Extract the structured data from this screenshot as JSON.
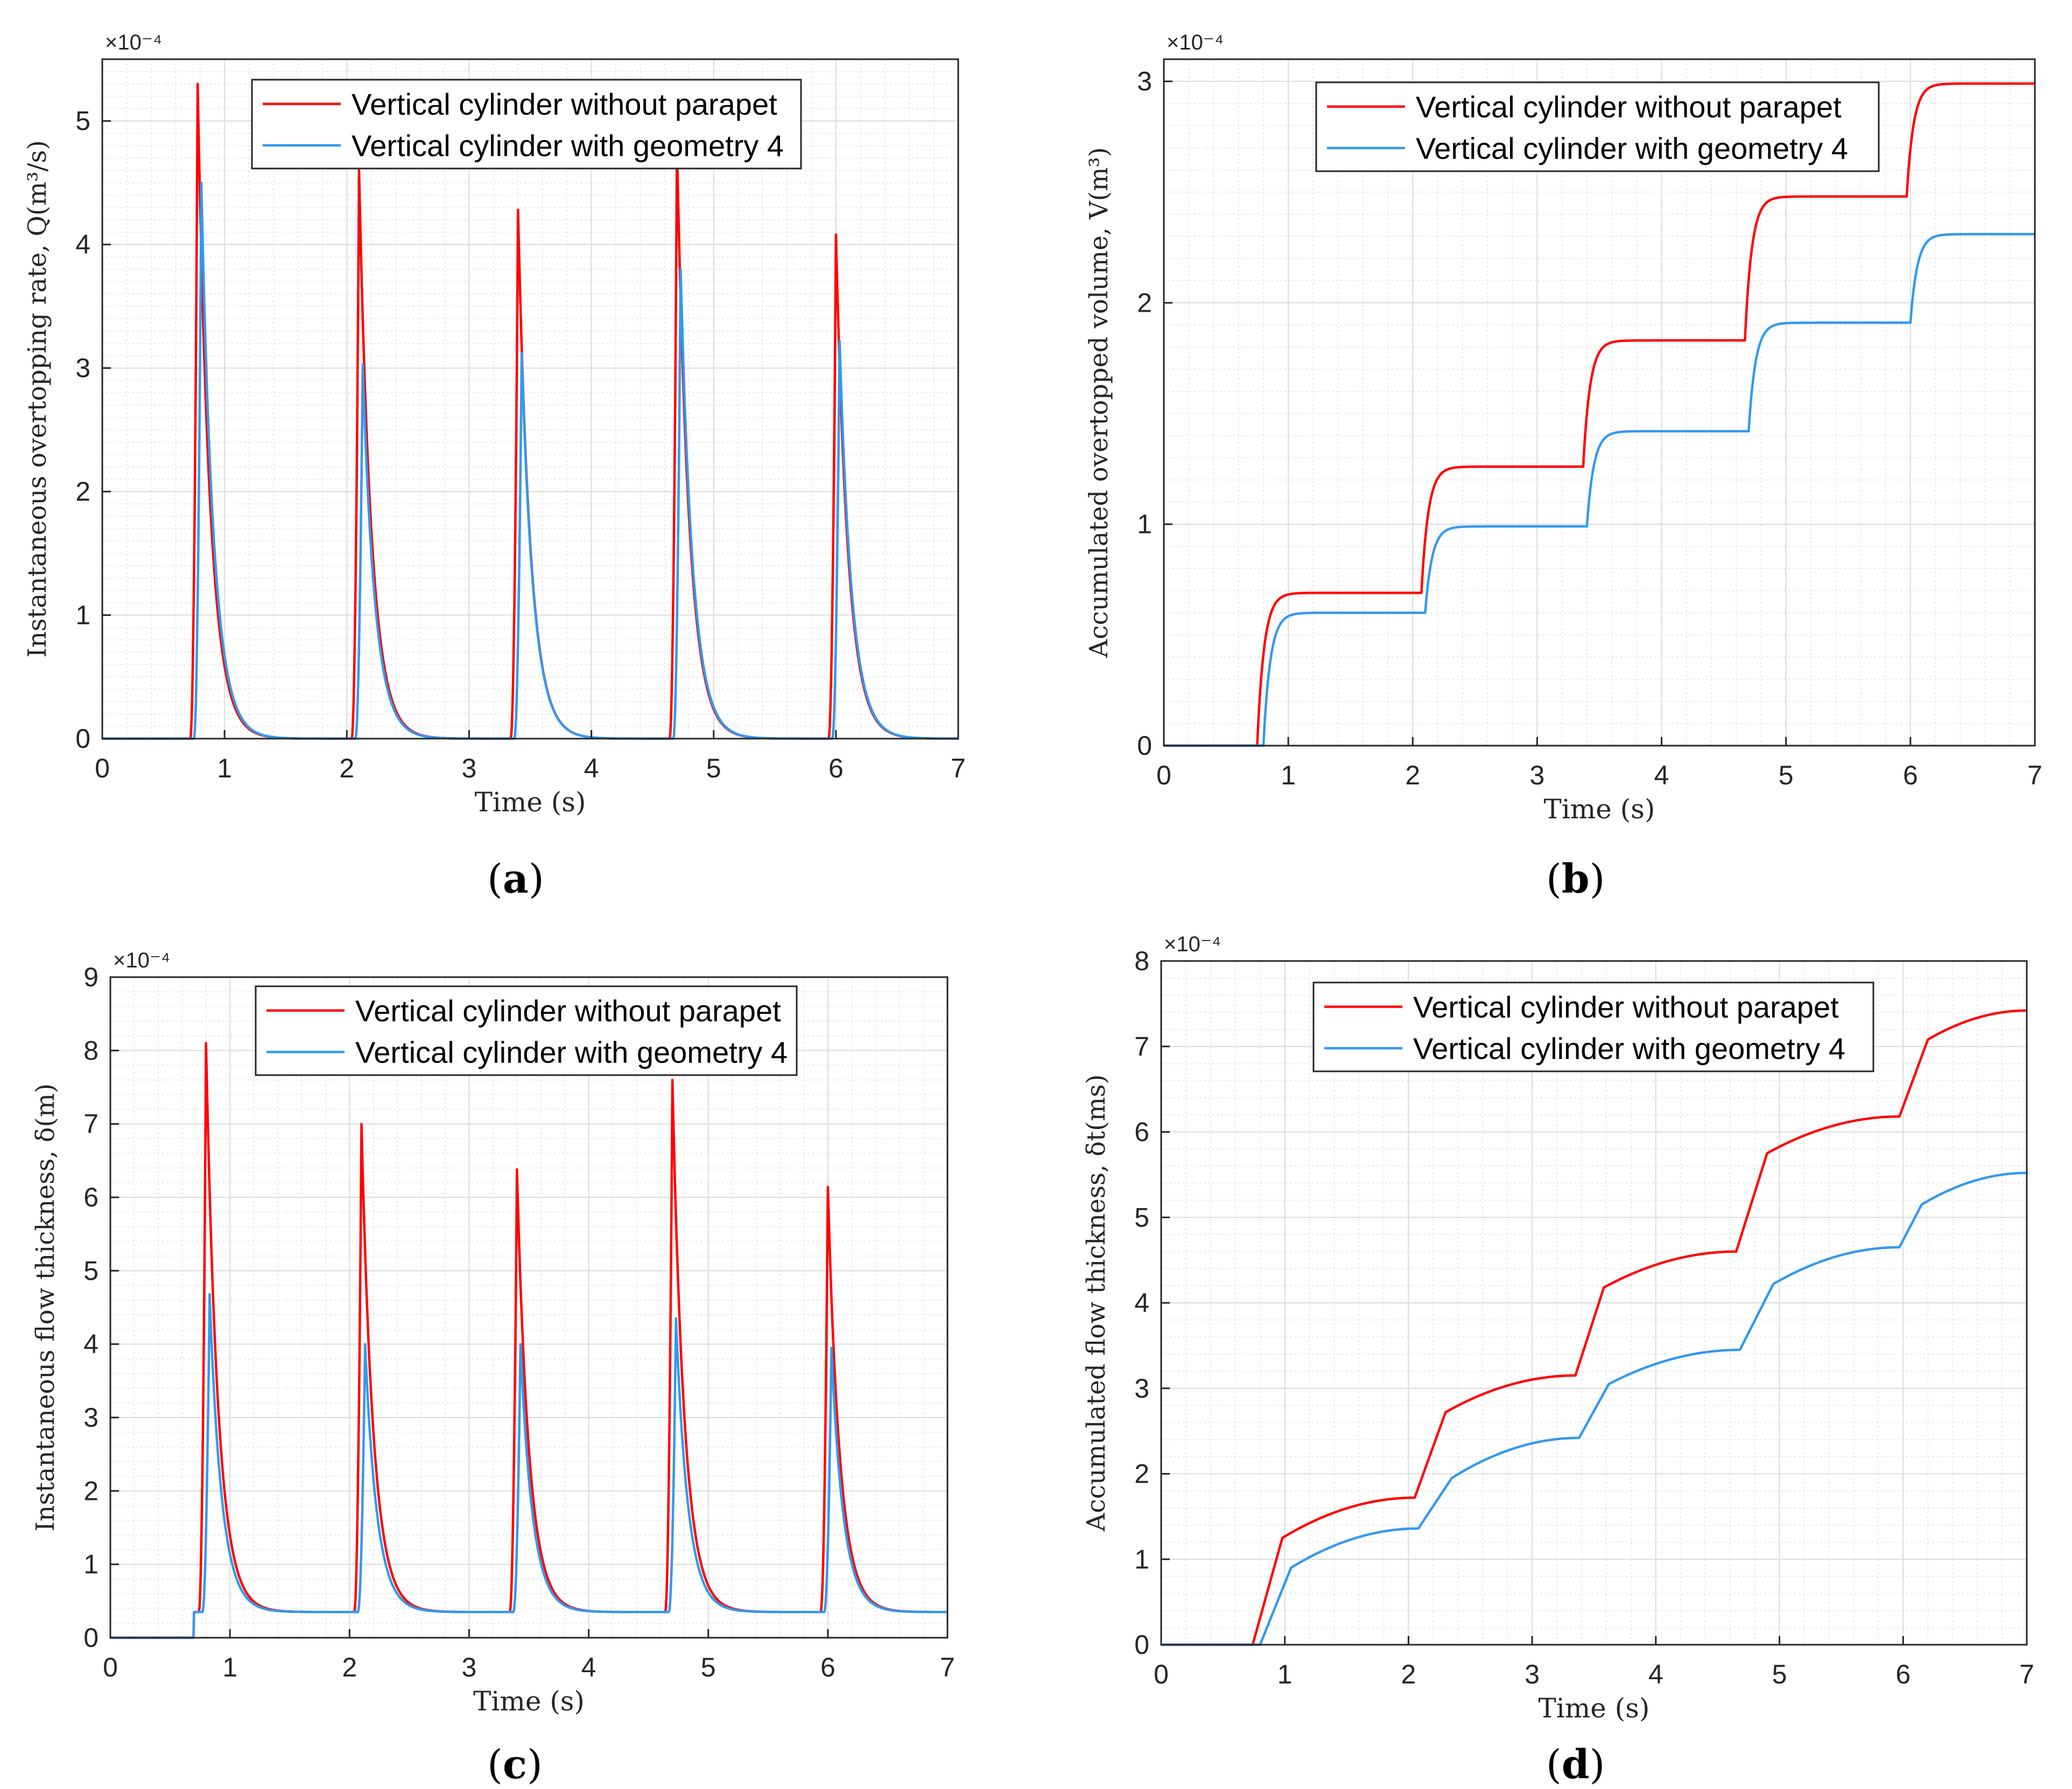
{
  "captions": [
    "a",
    "b",
    "c",
    "d"
  ],
  "colors": {
    "series1": "#ff0000",
    "series2": "#3399ee",
    "grid": "#dcdcdc",
    "axis": "#262626"
  },
  "chart_data": [
    {
      "type": "line",
      "panel": "a",
      "xlabel": "Time (s)",
      "ylabel": "Instantaneous overtopping rate, Q(m³/s)",
      "exponent": "×10⁻⁴",
      "xlim": [
        0,
        7
      ],
      "ylim": [
        0,
        5.5
      ],
      "xticks": [
        "0",
        "1",
        "2",
        "3",
        "4",
        "5",
        "6",
        "7"
      ],
      "yticks": [
        "0",
        "1",
        "2",
        "3",
        "4",
        "5"
      ],
      "grid": true,
      "legend_position": "top-center",
      "series": [
        {
          "name": "Vertical cylinder without parapet",
          "kind": "peaks",
          "base": 0.0,
          "peaks": [
            [
              0.78,
              5.3
            ],
            [
              2.1,
              4.6
            ],
            [
              3.4,
              4.28
            ],
            [
              4.7,
              4.8
            ],
            [
              6.0,
              4.08
            ]
          ]
        },
        {
          "name": "Vertical cylinder with geometry 4",
          "kind": "peaks",
          "base": 0.0,
          "peaks": [
            [
              0.81,
              4.5
            ],
            [
              2.13,
              3.03
            ],
            [
              3.43,
              3.12
            ],
            [
              4.73,
              3.8
            ],
            [
              6.03,
              3.22
            ]
          ]
        }
      ]
    },
    {
      "type": "line",
      "panel": "b",
      "xlabel": "Time (s)",
      "ylabel": "Accumulated overtopped volume, V(m³)",
      "exponent": "×10⁻⁴",
      "xlim": [
        0,
        7
      ],
      "ylim": [
        0,
        3.1
      ],
      "xticks": [
        "0",
        "1",
        "2",
        "3",
        "4",
        "5",
        "6",
        "7"
      ],
      "yticks": [
        "0",
        "1",
        "2",
        "3"
      ],
      "grid": true,
      "legend_position": "top-center",
      "series": [
        {
          "name": "Vertical cylinder without parapet",
          "kind": "steps",
          "start": 0.0,
          "steps": [
            [
              0.75,
              0.69
            ],
            [
              2.07,
              1.26
            ],
            [
              3.37,
              1.83
            ],
            [
              4.67,
              2.48
            ],
            [
              5.97,
              2.99
            ]
          ]
        },
        {
          "name": "Vertical cylinder with geometry 4",
          "kind": "steps",
          "start": 0.0,
          "steps": [
            [
              0.8,
              0.6
            ],
            [
              2.1,
              0.99
            ],
            [
              3.4,
              1.42
            ],
            [
              4.7,
              1.91
            ],
            [
              6.0,
              2.31
            ]
          ]
        }
      ]
    },
    {
      "type": "line",
      "panel": "c",
      "xlabel": "Time (s)",
      "ylabel": "Instantaneous flow thickness, δ(m)",
      "exponent": "×10⁻⁴",
      "xlim": [
        0,
        7
      ],
      "ylim": [
        0,
        9
      ],
      "xticks": [
        "0",
        "1",
        "2",
        "3",
        "4",
        "5",
        "6",
        "7"
      ],
      "yticks": [
        "0",
        "1",
        "2",
        "3",
        "4",
        "5",
        "6",
        "7",
        "8",
        "9"
      ],
      "grid": true,
      "legend_position": "top-center",
      "series": [
        {
          "name": "Vertical cylinder without parapet",
          "kind": "peaks",
          "base": 0.35,
          "peaks": [
            [
              0.8,
              8.1
            ],
            [
              2.1,
              7.0
            ],
            [
              3.4,
              6.38
            ],
            [
              4.7,
              7.6
            ],
            [
              6.0,
              6.14
            ]
          ]
        },
        {
          "name": "Vertical cylinder with geometry 4",
          "kind": "peaks",
          "base": 0.35,
          "peaks": [
            [
              0.83,
              4.68
            ],
            [
              2.13,
              4.0
            ],
            [
              3.43,
              4.0
            ],
            [
              4.73,
              4.35
            ],
            [
              6.03,
              3.95
            ]
          ]
        }
      ]
    },
    {
      "type": "line",
      "panel": "d",
      "xlabel": "Time (s)",
      "ylabel": "Accumulated flow thickness, δt(ms)",
      "exponent": "×10⁻⁴",
      "xlim": [
        0,
        7
      ],
      "ylim": [
        0,
        8
      ],
      "xticks": [
        "0",
        "1",
        "2",
        "3",
        "4",
        "5",
        "6",
        "7"
      ],
      "yticks": [
        "0",
        "1",
        "2",
        "3",
        "4",
        "5",
        "6",
        "7",
        "8"
      ],
      "grid": true,
      "legend_position": "top-center",
      "series": [
        {
          "name": "Vertical cylinder without parapet",
          "kind": "ramps",
          "points": [
            [
              0,
              0
            ],
            [
              0.74,
              0
            ],
            [
              0.98,
              1.25
            ],
            [
              2.05,
              1.72
            ],
            [
              2.3,
              2.72
            ],
            [
              3.35,
              3.15
            ],
            [
              3.58,
              4.18
            ],
            [
              4.65,
              4.6
            ],
            [
              4.9,
              5.75
            ],
            [
              5.97,
              6.18
            ],
            [
              6.2,
              7.08
            ],
            [
              7.0,
              7.42
            ]
          ]
        },
        {
          "name": "Vertical cylinder with geometry 4",
          "kind": "ramps",
          "points": [
            [
              0,
              0
            ],
            [
              0.8,
              0
            ],
            [
              1.05,
              0.9
            ],
            [
              2.08,
              1.36
            ],
            [
              2.35,
              1.95
            ],
            [
              3.38,
              2.42
            ],
            [
              3.62,
              3.05
            ],
            [
              4.68,
              3.45
            ],
            [
              4.95,
              4.22
            ],
            [
              5.97,
              4.65
            ],
            [
              6.15,
              5.15
            ],
            [
              7.0,
              5.52
            ]
          ]
        }
      ]
    }
  ]
}
